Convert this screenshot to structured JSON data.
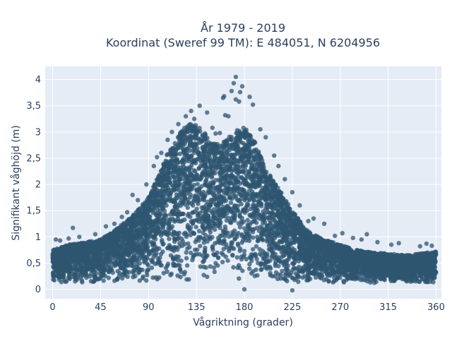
{
  "chart_data": {
    "type": "scatter",
    "title_line1": "År 1979 - 2019",
    "title_line2": "Koordinat (Sweref 99 TM): E 484051, N 6204956",
    "xlabel": "Vågriktning (grader)",
    "ylabel": "Signifikant våghöjd (m)",
    "xlim": [
      -7,
      365
    ],
    "ylim": [
      -0.18,
      4.25
    ],
    "x_ticks": [
      0,
      45,
      90,
      135,
      180,
      225,
      270,
      315,
      360
    ],
    "x_tick_labels": [
      "0",
      "45",
      "90",
      "135",
      "180",
      "225",
      "270",
      "315",
      "360"
    ],
    "y_ticks": [
      0,
      0.5,
      1,
      1.5,
      2,
      2.5,
      3,
      3.5,
      4
    ],
    "y_tick_labels": [
      "0",
      "0,5",
      "1",
      "1,5",
      "2",
      "2,5",
      "3",
      "3,5",
      "4"
    ],
    "grid": true,
    "marker_color": "#2f5570",
    "background_color": "#e5ecf6",
    "envelope": {
      "x": [
        0,
        15,
        30,
        45,
        60,
        75,
        90,
        100,
        110,
        120,
        130,
        140,
        150,
        160,
        170,
        180,
        190,
        200,
        210,
        225,
        240,
        255,
        270,
        285,
        300,
        315,
        330,
        345,
        360
      ],
      "y_max": [
        0.75,
        0.85,
        0.9,
        0.95,
        1.15,
        1.4,
        1.75,
        2.2,
        2.7,
        3.0,
        3.2,
        3.05,
        2.8,
        2.8,
        3.0,
        3.1,
        2.8,
        2.3,
        2.0,
        1.5,
        1.1,
        0.95,
        0.85,
        0.75,
        0.7,
        0.68,
        0.65,
        0.68,
        0.72
      ],
      "y_min": [
        0.1,
        0.12,
        0.12,
        0.12,
        0.12,
        0.12,
        0.12,
        0.12,
        0.12,
        0.12,
        0.12,
        0.12,
        0.12,
        0.12,
        0.12,
        0.12,
        0.12,
        0.12,
        0.12,
        0.12,
        0.12,
        0.12,
        0.12,
        0.12,
        0.12,
        0.12,
        0.12,
        0.12,
        0.1
      ]
    },
    "outliers": [
      {
        "x": 172,
        "y": 4.05
      },
      {
        "x": 170,
        "y": 3.93
      },
      {
        "x": 178,
        "y": 3.87
      },
      {
        "x": 168,
        "y": 3.78
      },
      {
        "x": 176,
        "y": 3.76
      },
      {
        "x": 185,
        "y": 3.67
      },
      {
        "x": 172,
        "y": 3.62
      },
      {
        "x": 175,
        "y": 3.58
      },
      {
        "x": 188,
        "y": 3.52
      },
      {
        "x": 160,
        "y": 3.65
      },
      {
        "x": 161,
        "y": 3.68
      },
      {
        "x": 138,
        "y": 3.5
      },
      {
        "x": 145,
        "y": 3.37
      },
      {
        "x": 130,
        "y": 3.4
      },
      {
        "x": 162,
        "y": 3.32
      },
      {
        "x": 165,
        "y": 3.3
      },
      {
        "x": 150,
        "y": 3.08
      },
      {
        "x": 153,
        "y": 2.97
      },
      {
        "x": 157,
        "y": 2.98
      },
      {
        "x": 195,
        "y": 3.05
      },
      {
        "x": 200,
        "y": 2.9
      },
      {
        "x": 208,
        "y": 2.55
      },
      {
        "x": 212,
        "y": 2.35
      },
      {
        "x": 218,
        "y": 2.1
      },
      {
        "x": 225,
        "y": 1.85
      },
      {
        "x": 232,
        "y": 1.6
      },
      {
        "x": 240,
        "y": 1.3
      },
      {
        "x": 245,
        "y": 1.35
      },
      {
        "x": 255,
        "y": 1.25
      },
      {
        "x": 265,
        "y": 1.02
      },
      {
        "x": 272,
        "y": 1.07
      },
      {
        "x": 282,
        "y": 0.98
      },
      {
        "x": 290,
        "y": 0.95
      },
      {
        "x": 295,
        "y": 1.05
      },
      {
        "x": 305,
        "y": 0.9
      },
      {
        "x": 318,
        "y": 0.85
      },
      {
        "x": 325,
        "y": 0.88
      },
      {
        "x": 345,
        "y": 0.82
      },
      {
        "x": 351,
        "y": 0.87
      },
      {
        "x": 356,
        "y": 0.83
      },
      {
        "x": 3,
        "y": 0.95
      },
      {
        "x": 7,
        "y": 0.93
      },
      {
        "x": 15,
        "y": 0.97
      },
      {
        "x": 19,
        "y": 1.17
      },
      {
        "x": 25,
        "y": 1.0
      },
      {
        "x": 40,
        "y": 1.05
      },
      {
        "x": 50,
        "y": 1.2
      },
      {
        "x": 58,
        "y": 1.25
      },
      {
        "x": 65,
        "y": 1.38
      },
      {
        "x": 70,
        "y": 1.47
      },
      {
        "x": 75,
        "y": 1.8
      },
      {
        "x": 80,
        "y": 1.7
      },
      {
        "x": 88,
        "y": 2.0
      },
      {
        "x": 95,
        "y": 2.35
      },
      {
        "x": 98,
        "y": 2.52
      },
      {
        "x": 102,
        "y": 2.6
      },
      {
        "x": 108,
        "y": 2.85
      },
      {
        "x": 112,
        "y": 3.0
      },
      {
        "x": 118,
        "y": 3.15
      },
      {
        "x": 125,
        "y": 3.3
      },
      {
        "x": 133,
        "y": 3.25
      },
      {
        "x": 115,
        "y": 0.95
      },
      {
        "x": 180,
        "y": 0.0
      },
      {
        "x": 225,
        "y": -0.02
      }
    ]
  }
}
